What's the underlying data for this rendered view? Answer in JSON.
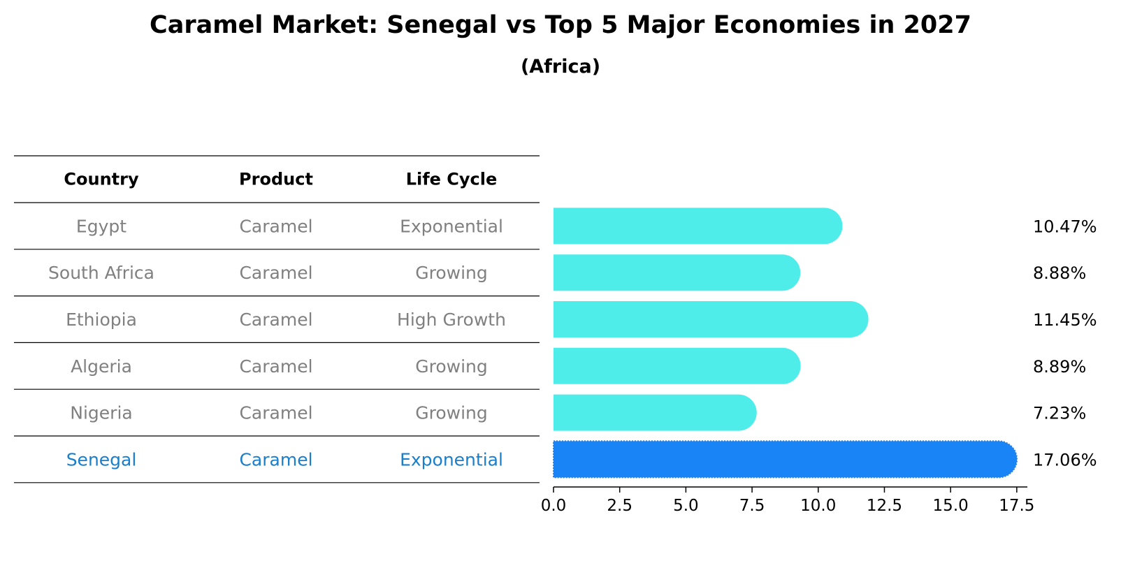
{
  "title": "Caramel Market: Senegal vs Top 5 Major Economies in 2027",
  "subtitle": "(Africa)",
  "colors": {
    "bar": "#4EEDEA",
    "highlight_bar": "#1884F5",
    "row_text": "#808080",
    "highlight_text": "#1A7FCB",
    "header_text": "#000000"
  },
  "table": {
    "headers": [
      "Country",
      "Product",
      "Life Cycle"
    ],
    "rows": [
      {
        "country": "Egypt",
        "product": "Caramel",
        "life_cycle": "Exponential",
        "highlight": false
      },
      {
        "country": "South Africa",
        "product": "Caramel",
        "life_cycle": "Growing",
        "highlight": false
      },
      {
        "country": "Ethiopia",
        "product": "Caramel",
        "life_cycle": "High Growth",
        "highlight": false
      },
      {
        "country": "Algeria",
        "product": "Caramel",
        "life_cycle": "Growing",
        "highlight": false
      },
      {
        "country": "Nigeria",
        "product": "Caramel",
        "life_cycle": "Growing",
        "highlight": false
      },
      {
        "country": "Senegal",
        "product": "Caramel",
        "life_cycle": "Exponential",
        "highlight": true
      }
    ]
  },
  "chart_data": {
    "type": "bar",
    "orientation": "horizontal",
    "title": "Caramel Market: Senegal vs Top 5 Major Economies in 2027",
    "subtitle": "(Africa)",
    "categories": [
      "Egypt",
      "South Africa",
      "Ethiopia",
      "Algeria",
      "Nigeria",
      "Senegal"
    ],
    "values": [
      10.47,
      8.88,
      11.45,
      8.89,
      7.23,
      17.06
    ],
    "value_labels": [
      "10.47%",
      "8.88%",
      "11.45%",
      "8.89%",
      "7.23%",
      "17.06%"
    ],
    "highlight_category": "Senegal",
    "xlim": [
      0,
      17.9
    ],
    "xticks": [
      0,
      2.5,
      5,
      7.5,
      10,
      12.5,
      15,
      17.5
    ],
    "xtick_labels": [
      "0.0",
      "2.5",
      "5.0",
      "7.5",
      "10.0",
      "12.5",
      "15.0",
      "17.5"
    ],
    "xlabel": "",
    "ylabel": "",
    "grid": false,
    "legend": "none"
  }
}
